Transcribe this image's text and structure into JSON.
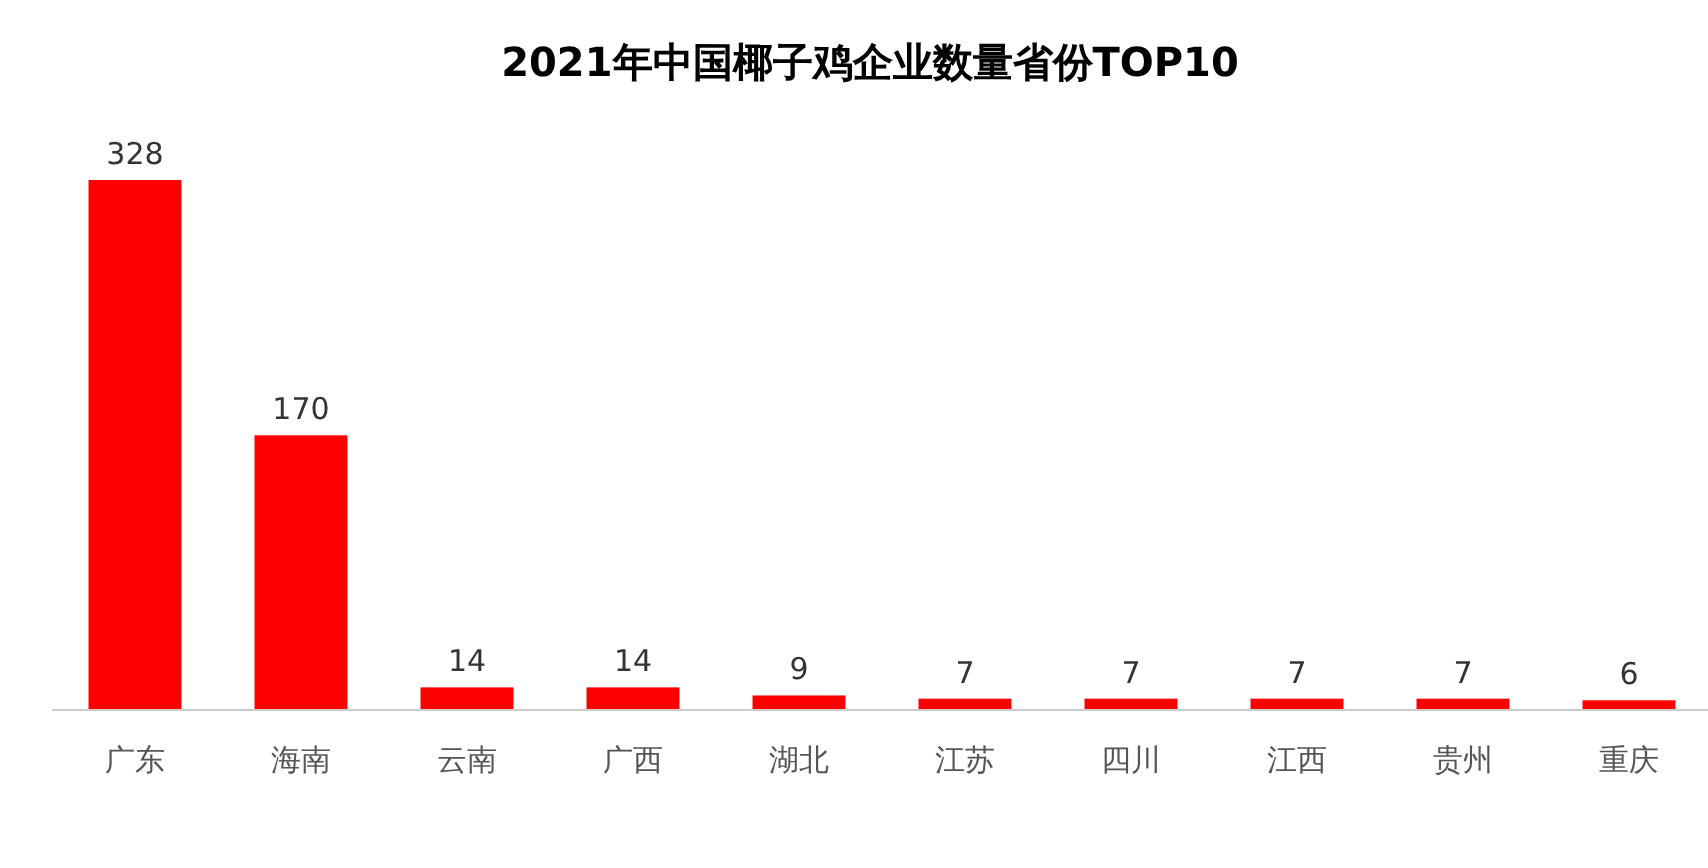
{
  "chart_data": {
    "type": "bar",
    "title": "2021年中国椰子鸡企业数量省份TOP10",
    "categories": [
      "广东",
      "海南",
      "云南",
      "广西",
      "湖北",
      "江苏",
      "四川",
      "江西",
      "贵州",
      "重庆"
    ],
    "values": [
      328,
      170,
      14,
      14,
      9,
      7,
      7,
      7,
      7,
      6
    ],
    "color": "#ff0000",
    "data_labels": true
  }
}
